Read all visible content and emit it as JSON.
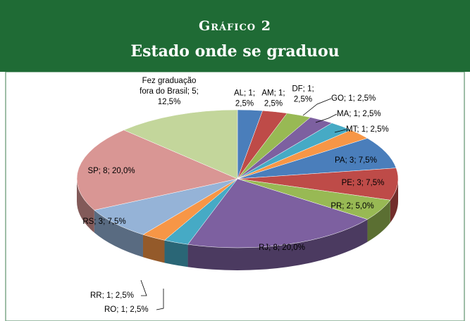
{
  "header": {
    "kicker": "Gráfico 2",
    "title": "Estado onde se graduou"
  },
  "chart_data": {
    "type": "pie3d",
    "values": [
      1,
      1,
      1,
      1,
      1,
      1,
      3,
      3,
      2,
      8,
      1,
      1,
      3,
      8,
      5
    ],
    "value_labels": [
      [
        "AL; 1;",
        "2,5%"
      ],
      [
        "AM; 1;",
        "2,5%"
      ],
      [
        "DF; 1;",
        "2,5%"
      ],
      [
        "GO; 1; 2,5%"
      ],
      [
        "MA; 1; 2,5%"
      ],
      [
        "MT; 1; 2,5%"
      ],
      [
        "PA; 3; 7,5%"
      ],
      [
        "PE; 3; 7,5%"
      ],
      [
        "PR; 2; 5,0%"
      ],
      [
        "RJ; 8; 20,0%"
      ],
      [
        "RO; 1; 2,5%"
      ],
      [
        "RR; 1; 2,5%"
      ],
      [
        "RS; 3; 7,5%"
      ],
      [
        "SP; 8; 20,0%"
      ],
      [
        "Fez graduação",
        "fora do Brasil; 5;",
        "12,5%"
      ]
    ],
    "colors": [
      "#4a7ebb",
      "#be4b48",
      "#98b954",
      "#7d60a0",
      "#46aac5",
      "#f79646",
      "#4a7ebb",
      "#be4b48",
      "#98b954",
      "#7d60a0",
      "#46aac5",
      "#f79646",
      "#95b3d7",
      "#d99694",
      "#c3d69b"
    ]
  }
}
